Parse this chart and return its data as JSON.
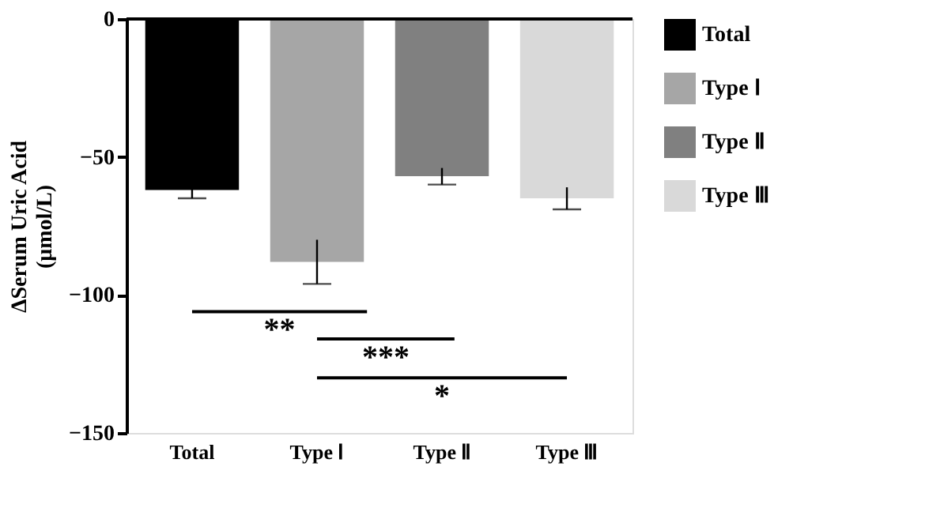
{
  "chart_data": {
    "type": "bar",
    "categories": [
      "Total",
      "Type Ⅰ",
      "Type Ⅱ",
      "Type Ⅲ"
    ],
    "series": [
      {
        "name": "Total",
        "color": "#000000",
        "values": [
          -62,
          null,
          null,
          null
        ],
        "errors": [
          3,
          null,
          null,
          null
        ]
      },
      {
        "name": "Type Ⅰ",
        "color": "#a6a6a6",
        "values": [
          null,
          -88,
          null,
          null
        ],
        "errors": [
          null,
          8,
          null,
          null
        ]
      },
      {
        "name": "Type Ⅱ",
        "color": "#808080",
        "values": [
          null,
          null,
          -57,
          null
        ],
        "errors": [
          null,
          null,
          3,
          null
        ]
      },
      {
        "name": "Type Ⅲ",
        "color": "#d9d9d9",
        "values": [
          null,
          null,
          null,
          -65
        ],
        "errors": [
          null,
          null,
          null,
          4
        ]
      }
    ],
    "ylabel": "ΔSerum Uric Acid\n(μmol/L)",
    "ylim": [
      -150,
      0
    ],
    "yticks": [
      0,
      -50,
      -100,
      -150
    ],
    "annotations": [
      "**",
      "***",
      "*"
    ],
    "legend": "right",
    "grid": false
  }
}
